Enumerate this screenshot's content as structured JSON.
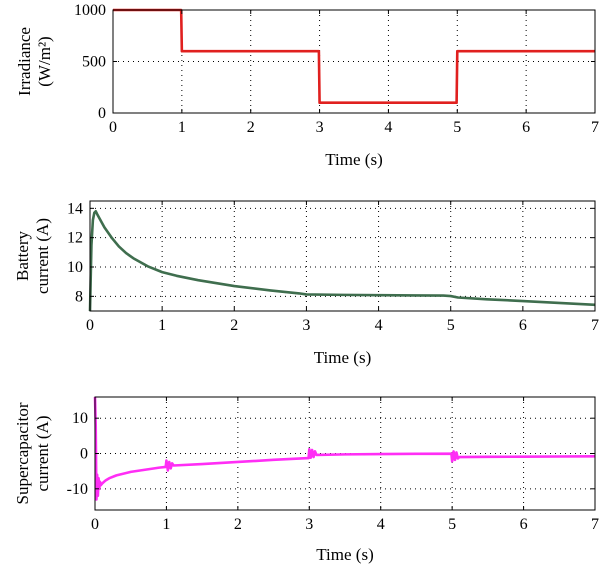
{
  "chart_data": [
    {
      "type": "line",
      "xlabel": "Time (s)",
      "ylabel_lines": [
        "Irradiance",
        "(W/m²)"
      ],
      "xlim": [
        0,
        7
      ],
      "ylim": [
        0,
        1000
      ],
      "xticks": [
        0,
        1,
        2,
        3,
        4,
        5,
        6,
        7
      ],
      "yticks": [
        0,
        500,
        1000
      ],
      "grid": true,
      "series": [
        {
          "color": "#e0201f",
          "x": [
            0,
            0.99,
            1.0,
            2.99,
            3.0,
            4.99,
            5.0,
            7.0
          ],
          "y": [
            1000,
            1000,
            600,
            600,
            100,
            100,
            600,
            600
          ]
        }
      ]
    },
    {
      "type": "line",
      "xlabel": "Time (s)",
      "ylabel_lines": [
        "Battery",
        "current (A)"
      ],
      "xlim": [
        0,
        7
      ],
      "ylim": [
        7,
        14.5
      ],
      "xticks": [
        0,
        1,
        2,
        3,
        4,
        5,
        6,
        7
      ],
      "yticks": [
        8,
        10,
        12,
        14
      ],
      "grid": true,
      "series": [
        {
          "color": "#3f6e4e",
          "x": [
            0,
            0.02,
            0.04,
            0.06,
            0.08,
            0.1,
            0.2,
            0.3,
            0.4,
            0.5,
            0.6,
            0.8,
            1.0,
            1.2,
            1.5,
            2.0,
            2.5,
            2.9,
            3.0,
            3.5,
            4.0,
            4.5,
            4.9,
            5.0,
            5.1,
            5.5,
            6.0,
            6.5,
            7.0
          ],
          "y": [
            7.0,
            11.5,
            13.2,
            13.7,
            13.8,
            13.6,
            12.7,
            12.0,
            11.4,
            10.95,
            10.6,
            10.05,
            9.65,
            9.4,
            9.1,
            8.7,
            8.4,
            8.2,
            8.13,
            8.1,
            8.08,
            8.06,
            8.05,
            8.02,
            7.92,
            7.8,
            7.68,
            7.55,
            7.42
          ]
        }
      ]
    },
    {
      "type": "line",
      "xlabel": "Time (s)",
      "ylabel_lines": [
        "Supercapacitor",
        "current (A)"
      ],
      "xlim": [
        0,
        7
      ],
      "ylim": [
        -16,
        16
      ],
      "xticks": [
        0,
        1,
        2,
        3,
        4,
        5,
        6,
        7
      ],
      "yticks": [
        -10,
        0,
        10
      ],
      "grid": true,
      "series": [
        {
          "color": "#ff2ef5",
          "x": [
            0,
            0.01,
            0.02,
            0.03,
            0.04,
            0.05,
            0.06,
            0.07,
            0.08,
            0.1,
            0.15,
            0.2,
            0.3,
            0.5,
            0.7,
            0.9,
            0.99,
            1.0,
            1.02,
            1.04,
            1.06,
            1.08,
            1.1,
            1.5,
            2.0,
            2.5,
            2.99,
            3.0,
            3.02,
            3.04,
            3.06,
            3.08,
            3.1,
            3.5,
            4.0,
            4.5,
            4.99,
            5.0,
            5.02,
            5.04,
            5.06,
            5.08,
            5.1,
            5.5,
            6.0,
            6.5,
            7.0
          ],
          "y": [
            16,
            8,
            -13,
            -6,
            -12,
            -7,
            -10,
            -8,
            -9,
            -8.5,
            -7.6,
            -7.0,
            -6.2,
            -5.2,
            -4.6,
            -4.0,
            -3.8,
            -2.0,
            -4.8,
            -2.4,
            -4.2,
            -2.8,
            -3.4,
            -3.0,
            -2.4,
            -1.8,
            -1.3,
            1.2,
            -1.2,
            1.0,
            -1.0,
            0.6,
            -0.4,
            -0.25,
            -0.15,
            -0.1,
            -0.05,
            -2.2,
            0.6,
            -1.8,
            0.3,
            -1.4,
            -1.0,
            -0.95,
            -0.9,
            -0.85,
            -0.8
          ]
        }
      ]
    }
  ]
}
